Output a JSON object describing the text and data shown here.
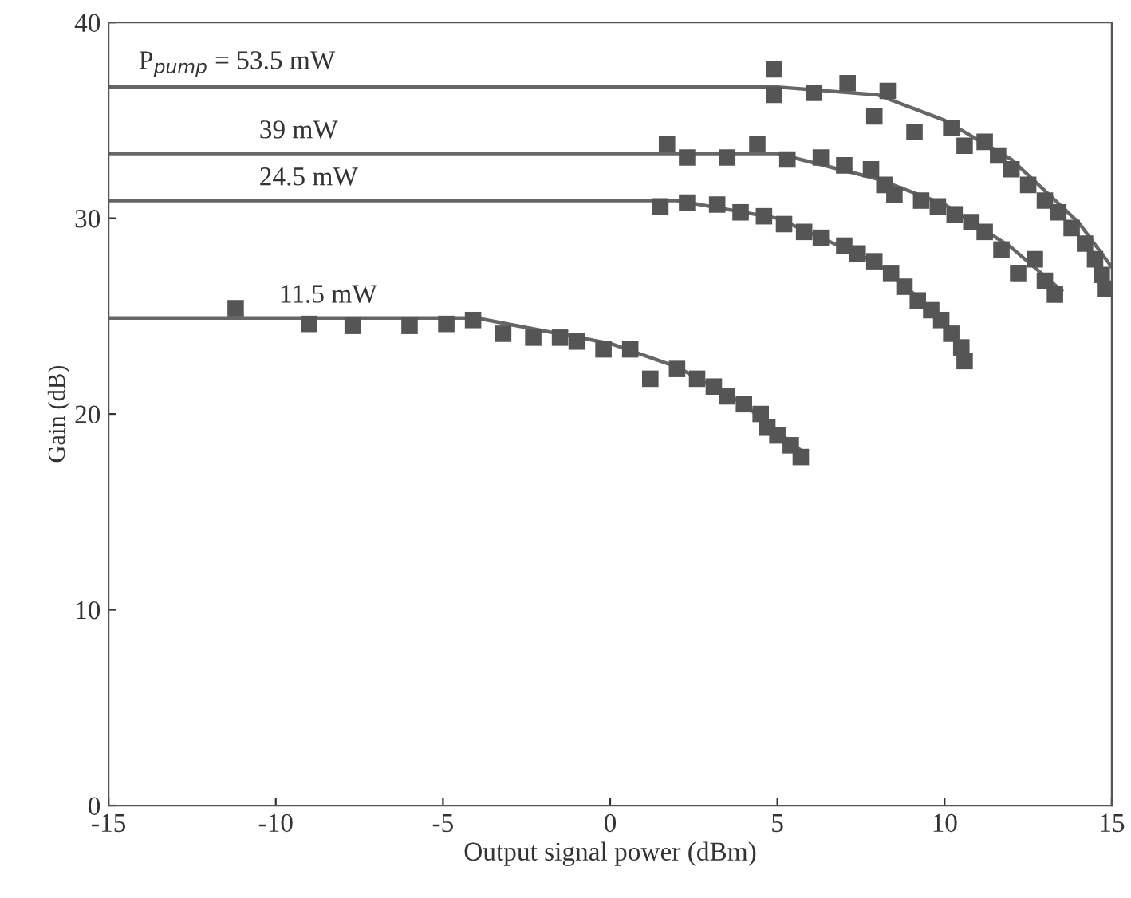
{
  "chart_data": {
    "type": "scatter",
    "xlabel": "Output signal power (dBm)",
    "ylabel": "Gain (dB)",
    "xlim": [
      -15,
      15
    ],
    "ylim": [
      0,
      40
    ],
    "xticks": [
      -15,
      -10,
      -5,
      0,
      5,
      10,
      15
    ],
    "yticks": [
      0,
      10,
      20,
      30,
      40
    ],
    "grid": false,
    "legend": false,
    "marker": "square",
    "series": [
      {
        "type": "line",
        "name": "P$_{pump}$ = 53.5 mW",
        "marker": "none",
        "color": "#666666",
        "x": [
          -15,
          5,
          8,
          10,
          12,
          14,
          15
        ],
        "values": [
          36.7,
          36.7,
          36.3,
          35.0,
          33.0,
          29.8,
          27.5
        ]
      },
      {
        "type": "line",
        "name": "39 mW",
        "marker": "none",
        "color": "#666666",
        "x": [
          -15,
          5,
          8,
          10,
          12,
          13.5
        ],
        "values": [
          33.3,
          33.3,
          32.0,
          30.7,
          28.5,
          26.3
        ]
      },
      {
        "type": "line",
        "name": "24.5 mW",
        "marker": "none",
        "color": "#666666",
        "x": [
          -15,
          2,
          5,
          8,
          10,
          10.6
        ],
        "values": [
          30.9,
          30.9,
          30.0,
          27.7,
          24.8,
          23.0
        ]
      },
      {
        "type": "line",
        "name": "11.5 mW",
        "marker": "none",
        "color": "#666666",
        "x": [
          -15,
          -4,
          0,
          2,
          4,
          5.8
        ],
        "values": [
          24.9,
          24.9,
          23.6,
          22.4,
          20.5,
          18.0
        ]
      },
      {
        "color": "#555555",
        "x": [
          4.9,
          4.9,
          6.1,
          7.1,
          8.3,
          7.9,
          9.1,
          10.2,
          10.6,
          11.2,
          11.6,
          12.0,
          12.5,
          13.0,
          13.4,
          13.8,
          14.2,
          14.5,
          14.7,
          14.8
        ],
        "values": [
          37.6,
          36.3,
          36.4,
          36.9,
          36.5,
          35.2,
          34.4,
          34.6,
          33.7,
          33.9,
          33.2,
          32.5,
          31.7,
          30.9,
          30.3,
          29.5,
          28.7,
          27.9,
          27.1,
          26.4
        ]
      },
      {
        "color": "#555555",
        "x": [
          1.7,
          2.3,
          3.5,
          4.4,
          5.3,
          6.3,
          7.0,
          7.8,
          8.2,
          8.5,
          9.3,
          9.8,
          10.3,
          10.8,
          11.2,
          11.7,
          12.2,
          12.7,
          13.0,
          13.3
        ],
        "values": [
          33.8,
          33.1,
          33.1,
          33.8,
          33.0,
          33.1,
          32.7,
          32.5,
          31.7,
          31.2,
          30.9,
          30.6,
          30.2,
          29.8,
          29.3,
          28.4,
          27.2,
          27.9,
          26.8,
          26.1
        ]
      },
      {
        "color": "#555555",
        "x": [
          1.5,
          2.3,
          3.2,
          3.9,
          4.6,
          5.2,
          5.8,
          6.3,
          7.0,
          7.4,
          7.9,
          8.4,
          8.8,
          9.2,
          9.6,
          9.9,
          10.2,
          10.5,
          10.6
        ],
        "values": [
          30.6,
          30.8,
          30.7,
          30.3,
          30.1,
          29.7,
          29.3,
          29.0,
          28.6,
          28.2,
          27.8,
          27.2,
          26.5,
          25.8,
          25.3,
          24.8,
          24.1,
          23.4,
          22.7
        ]
      },
      {
        "color": "#555555",
        "x": [
          -11.2,
          -9.0,
          -7.7,
          -6.0,
          -4.9,
          -4.1,
          -3.2,
          -2.3,
          -1.5,
          -1.0,
          -0.2,
          0.6,
          1.2,
          2.0,
          2.6,
          3.1,
          3.5,
          4.0,
          4.5,
          4.7,
          5.0,
          5.4,
          5.7
        ],
        "values": [
          25.4,
          24.6,
          24.5,
          24.5,
          24.6,
          24.8,
          24.1,
          23.9,
          23.9,
          23.7,
          23.3,
          23.3,
          21.8,
          22.3,
          21.8,
          21.4,
          20.9,
          20.5,
          20.0,
          19.3,
          18.9,
          18.4,
          17.8
        ]
      }
    ]
  }
}
